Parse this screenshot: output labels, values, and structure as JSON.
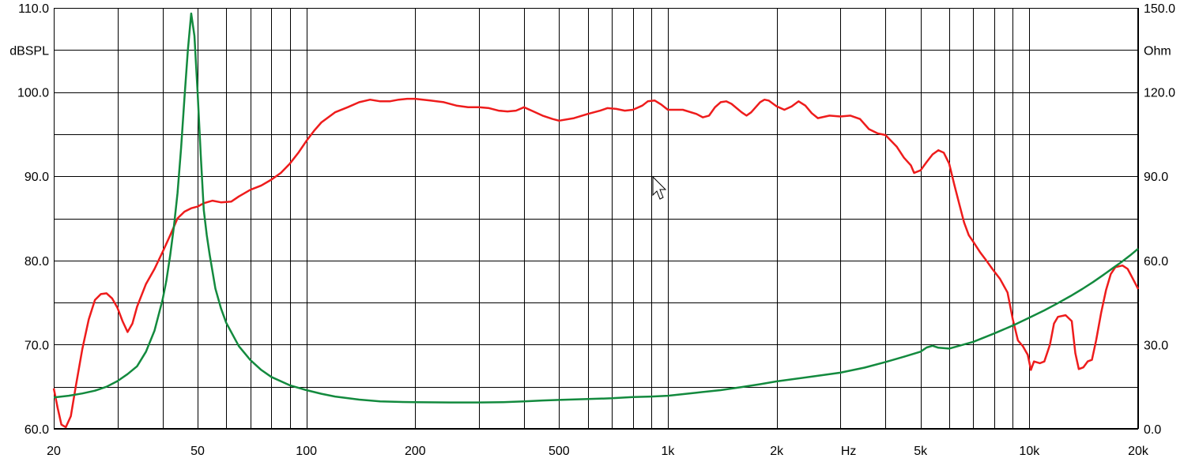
{
  "chart_data": {
    "type": "line",
    "title": "",
    "x_scale": "log",
    "xlim": [
      20,
      20000
    ],
    "x_tick_values": [
      20,
      50,
      100,
      200,
      500,
      1000,
      2000,
      5000,
      10000,
      20000
    ],
    "x_tick_labels": [
      "20",
      "50",
      "100",
      "200",
      "500",
      "1k",
      "2k",
      "5k",
      "10k",
      "20k"
    ],
    "x_unit_label": "Hz",
    "y_left": {
      "label": "dBSPL",
      "lim": [
        60,
        110
      ],
      "tick_values": [
        60,
        70,
        80,
        90,
        100,
        110
      ],
      "tick_labels": [
        "60.0",
        "70.0",
        "80.0",
        "90.0",
        "100.0",
        "110.0"
      ]
    },
    "y_right": {
      "label": "Ohm",
      "lim": [
        0,
        150
      ],
      "tick_values": [
        0,
        30,
        60,
        90,
        120,
        150
      ],
      "tick_labels": [
        "0.0",
        "30.0",
        "60.0",
        "90.0",
        "120.0",
        "150.0"
      ]
    },
    "grid": true,
    "legend": "none",
    "series": [
      {
        "axis": "left",
        "color": "#ee1c1c",
        "points": [
          [
            20,
            64.8
          ],
          [
            20.5,
            62.5
          ],
          [
            21,
            60.5
          ],
          [
            21.6,
            60.2
          ],
          [
            22.3,
            61.5
          ],
          [
            23,
            65
          ],
          [
            24,
            69.5
          ],
          [
            25,
            73
          ],
          [
            26,
            75.3
          ],
          [
            27,
            76
          ],
          [
            28,
            76.1
          ],
          [
            29,
            75.5
          ],
          [
            30,
            74.4
          ],
          [
            31,
            72.8
          ],
          [
            32,
            71.5
          ],
          [
            33,
            72.5
          ],
          [
            34,
            74.5
          ],
          [
            36,
            77.2
          ],
          [
            38,
            79
          ],
          [
            40,
            81
          ],
          [
            42,
            83
          ],
          [
            44,
            85
          ],
          [
            46,
            85.8
          ],
          [
            48,
            86.2
          ],
          [
            50,
            86.4
          ],
          [
            52,
            86.8
          ],
          [
            55,
            87.1
          ],
          [
            58,
            86.9
          ],
          [
            62,
            87
          ],
          [
            65,
            87.6
          ],
          [
            70,
            88.4
          ],
          [
            75,
            88.9
          ],
          [
            80,
            89.6
          ],
          [
            85,
            90.4
          ],
          [
            90,
            91.5
          ],
          [
            95,
            92.8
          ],
          [
            100,
            94.2
          ],
          [
            105,
            95.4
          ],
          [
            110,
            96.4
          ],
          [
            120,
            97.6
          ],
          [
            130,
            98.2
          ],
          [
            140,
            98.8
          ],
          [
            150,
            99.1
          ],
          [
            160,
            98.9
          ],
          [
            170,
            98.9
          ],
          [
            180,
            99.1
          ],
          [
            190,
            99.2
          ],
          [
            200,
            99.2
          ],
          [
            220,
            99
          ],
          [
            240,
            98.8
          ],
          [
            260,
            98.4
          ],
          [
            280,
            98.2
          ],
          [
            300,
            98.2
          ],
          [
            320,
            98.1
          ],
          [
            340,
            97.8
          ],
          [
            360,
            97.7
          ],
          [
            380,
            97.8
          ],
          [
            400,
            98.2
          ],
          [
            420,
            97.8
          ],
          [
            450,
            97.2
          ],
          [
            480,
            96.8
          ],
          [
            500,
            96.6
          ],
          [
            550,
            96.9
          ],
          [
            600,
            97.4
          ],
          [
            650,
            97.8
          ],
          [
            680,
            98.1
          ],
          [
            720,
            98
          ],
          [
            760,
            97.8
          ],
          [
            800,
            97.9
          ],
          [
            850,
            98.4
          ],
          [
            880,
            98.9
          ],
          [
            920,
            99
          ],
          [
            960,
            98.5
          ],
          [
            1000,
            97.9
          ],
          [
            1100,
            97.9
          ],
          [
            1200,
            97.4
          ],
          [
            1250,
            97
          ],
          [
            1300,
            97.2
          ],
          [
            1350,
            98.2
          ],
          [
            1400,
            98.8
          ],
          [
            1450,
            98.9
          ],
          [
            1500,
            98.6
          ],
          [
            1600,
            97.6
          ],
          [
            1650,
            97.2
          ],
          [
            1700,
            97.6
          ],
          [
            1800,
            98.8
          ],
          [
            1850,
            99.1
          ],
          [
            1900,
            99
          ],
          [
            2000,
            98.3
          ],
          [
            2100,
            97.9
          ],
          [
            2200,
            98.3
          ],
          [
            2300,
            98.9
          ],
          [
            2400,
            98.4
          ],
          [
            2500,
            97.5
          ],
          [
            2600,
            96.9
          ],
          [
            2800,
            97.2
          ],
          [
            3000,
            97.1
          ],
          [
            3200,
            97.2
          ],
          [
            3400,
            96.8
          ],
          [
            3600,
            95.6
          ],
          [
            3800,
            95.1
          ],
          [
            4000,
            94.9
          ],
          [
            4300,
            93.5
          ],
          [
            4500,
            92.2
          ],
          [
            4700,
            91.3
          ],
          [
            4800,
            90.4
          ],
          [
            5000,
            90.7
          ],
          [
            5200,
            91.7
          ],
          [
            5400,
            92.6
          ],
          [
            5600,
            93.1
          ],
          [
            5800,
            92.8
          ],
          [
            6000,
            91.5
          ],
          [
            6200,
            89
          ],
          [
            6400,
            86.7
          ],
          [
            6600,
            84.5
          ],
          [
            6800,
            83
          ],
          [
            7000,
            82.2
          ],
          [
            7300,
            81
          ],
          [
            7600,
            80
          ],
          [
            7900,
            79
          ],
          [
            8300,
            77.8
          ],
          [
            8700,
            76.2
          ],
          [
            9000,
            73
          ],
          [
            9300,
            70.5
          ],
          [
            9600,
            69.8
          ],
          [
            9900,
            68.8
          ],
          [
            10100,
            67
          ],
          [
            10300,
            68
          ],
          [
            10700,
            67.8
          ],
          [
            11000,
            68
          ],
          [
            11400,
            70
          ],
          [
            11700,
            72.5
          ],
          [
            12000,
            73.3
          ],
          [
            12600,
            73.5
          ],
          [
            13100,
            72.8
          ],
          [
            13400,
            69
          ],
          [
            13700,
            67.1
          ],
          [
            14100,
            67.3
          ],
          [
            14500,
            68
          ],
          [
            14900,
            68.2
          ],
          [
            15300,
            70.5
          ],
          [
            15800,
            73.8
          ],
          [
            16300,
            76.5
          ],
          [
            16800,
            78.4
          ],
          [
            17300,
            79.2
          ],
          [
            18100,
            79.4
          ],
          [
            18700,
            79
          ],
          [
            19300,
            77.9
          ],
          [
            19900,
            76.8
          ],
          [
            20000,
            76.6
          ]
        ]
      },
      {
        "axis": "right",
        "color": "#138a3e",
        "points": [
          [
            20,
            11.2
          ],
          [
            22,
            11.8
          ],
          [
            24,
            12.6
          ],
          [
            26,
            13.6
          ],
          [
            28,
            15
          ],
          [
            30,
            17
          ],
          [
            32,
            19.5
          ],
          [
            34,
            22.3
          ],
          [
            36,
            27.5
          ],
          [
            38,
            35
          ],
          [
            40,
            46
          ],
          [
            41,
            53
          ],
          [
            42,
            62
          ],
          [
            43,
            72
          ],
          [
            44,
            84
          ],
          [
            45,
            100
          ],
          [
            46,
            118
          ],
          [
            47,
            135
          ],
          [
            48,
            148
          ],
          [
            49,
            140
          ],
          [
            50,
            120
          ],
          [
            51,
            98
          ],
          [
            52,
            78
          ],
          [
            53,
            69
          ],
          [
            54,
            62
          ],
          [
            56,
            50
          ],
          [
            58,
            43
          ],
          [
            60,
            37.8
          ],
          [
            65,
            29.5
          ],
          [
            70,
            24.5
          ],
          [
            75,
            21
          ],
          [
            80,
            18.5
          ],
          [
            90,
            15.5
          ],
          [
            100,
            13.8
          ],
          [
            110,
            12.5
          ],
          [
            120,
            11.5
          ],
          [
            140,
            10.4
          ],
          [
            160,
            9.8
          ],
          [
            180,
            9.6
          ],
          [
            200,
            9.5
          ],
          [
            250,
            9.4
          ],
          [
            300,
            9.4
          ],
          [
            350,
            9.5
          ],
          [
            400,
            9.8
          ],
          [
            450,
            10.1
          ],
          [
            500,
            10.3
          ],
          [
            600,
            10.6
          ],
          [
            700,
            10.9
          ],
          [
            800,
            11.3
          ],
          [
            900,
            11.5
          ],
          [
            1000,
            11.8
          ],
          [
            1200,
            12.9
          ],
          [
            1400,
            13.8
          ],
          [
            1600,
            14.9
          ],
          [
            1800,
            15.9
          ],
          [
            2000,
            16.9
          ],
          [
            2500,
            18.6
          ],
          [
            3000,
            20
          ],
          [
            3500,
            21.8
          ],
          [
            4000,
            23.8
          ],
          [
            4500,
            25.7
          ],
          [
            5000,
            27.5
          ],
          [
            5200,
            29
          ],
          [
            5400,
            29.6
          ],
          [
            5600,
            28.9
          ],
          [
            6000,
            28.6
          ],
          [
            7000,
            31
          ],
          [
            8000,
            34
          ],
          [
            9000,
            36.8
          ],
          [
            10000,
            39.6
          ],
          [
            11000,
            42.2
          ],
          [
            12000,
            44.8
          ],
          [
            13000,
            47.3
          ],
          [
            14000,
            49.8
          ],
          [
            15000,
            52.3
          ],
          [
            16000,
            54.8
          ],
          [
            17000,
            57.2
          ],
          [
            18000,
            59.5
          ],
          [
            19000,
            61.8
          ],
          [
            20000,
            64.2
          ]
        ]
      }
    ]
  }
}
